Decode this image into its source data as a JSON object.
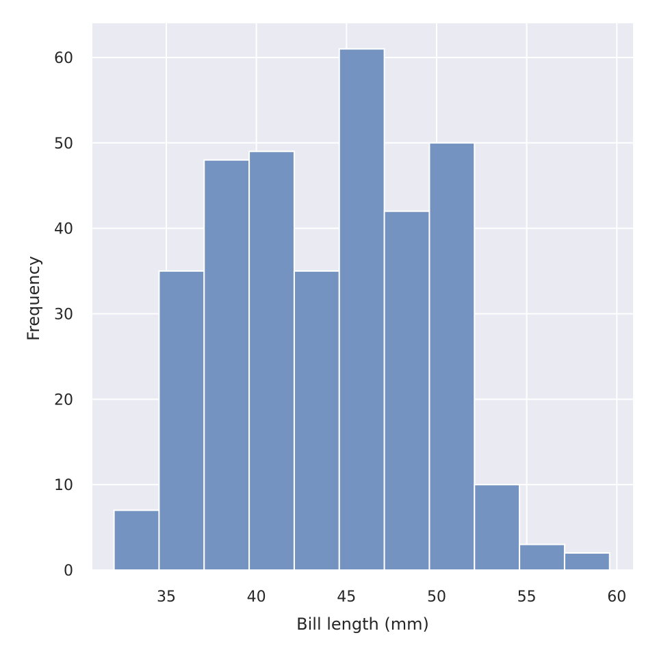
{
  "chart_data": {
    "type": "bar",
    "title": "",
    "xlabel": "Bill length (mm)",
    "ylabel": "Frequency",
    "xlim": [
      30.9,
      60.9
    ],
    "ylim": [
      0,
      64
    ],
    "xticks": [
      35,
      40,
      45,
      50,
      55,
      60
    ],
    "yticks": [
      0,
      10,
      20,
      30,
      40,
      50,
      60
    ],
    "grid": true,
    "bins": [
      {
        "start": 32.1,
        "end": 34.6,
        "value": 7
      },
      {
        "start": 34.6,
        "end": 37.1,
        "value": 35
      },
      {
        "start": 37.1,
        "end": 39.6,
        "value": 48
      },
      {
        "start": 39.6,
        "end": 42.1,
        "value": 49
      },
      {
        "start": 42.1,
        "end": 44.6,
        "value": 35
      },
      {
        "start": 44.6,
        "end": 47.1,
        "value": 61
      },
      {
        "start": 47.1,
        "end": 49.6,
        "value": 42
      },
      {
        "start": 49.6,
        "end": 52.1,
        "value": 50
      },
      {
        "start": 52.1,
        "end": 54.6,
        "value": 10
      },
      {
        "start": 54.6,
        "end": 57.1,
        "value": 3
      },
      {
        "start": 57.1,
        "end": 59.6,
        "value": 2
      }
    ],
    "colors": {
      "bar": "#7593c1",
      "bar_edge": "#ffffff",
      "plot_bg": "#eaeaf2",
      "grid": "#ffffff",
      "text": "#262626"
    }
  }
}
